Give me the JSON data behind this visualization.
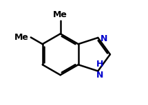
{
  "background_color": "#ffffff",
  "bond_color": "#000000",
  "text_color_black": "#000000",
  "text_color_blue": "#0000cd",
  "bond_width": 1.8,
  "fig_size": [
    2.15,
    1.53
  ],
  "dpi": 100,
  "xlim": [
    -0.1,
    1.05
  ],
  "ylim": [
    -0.05,
    1.05
  ]
}
